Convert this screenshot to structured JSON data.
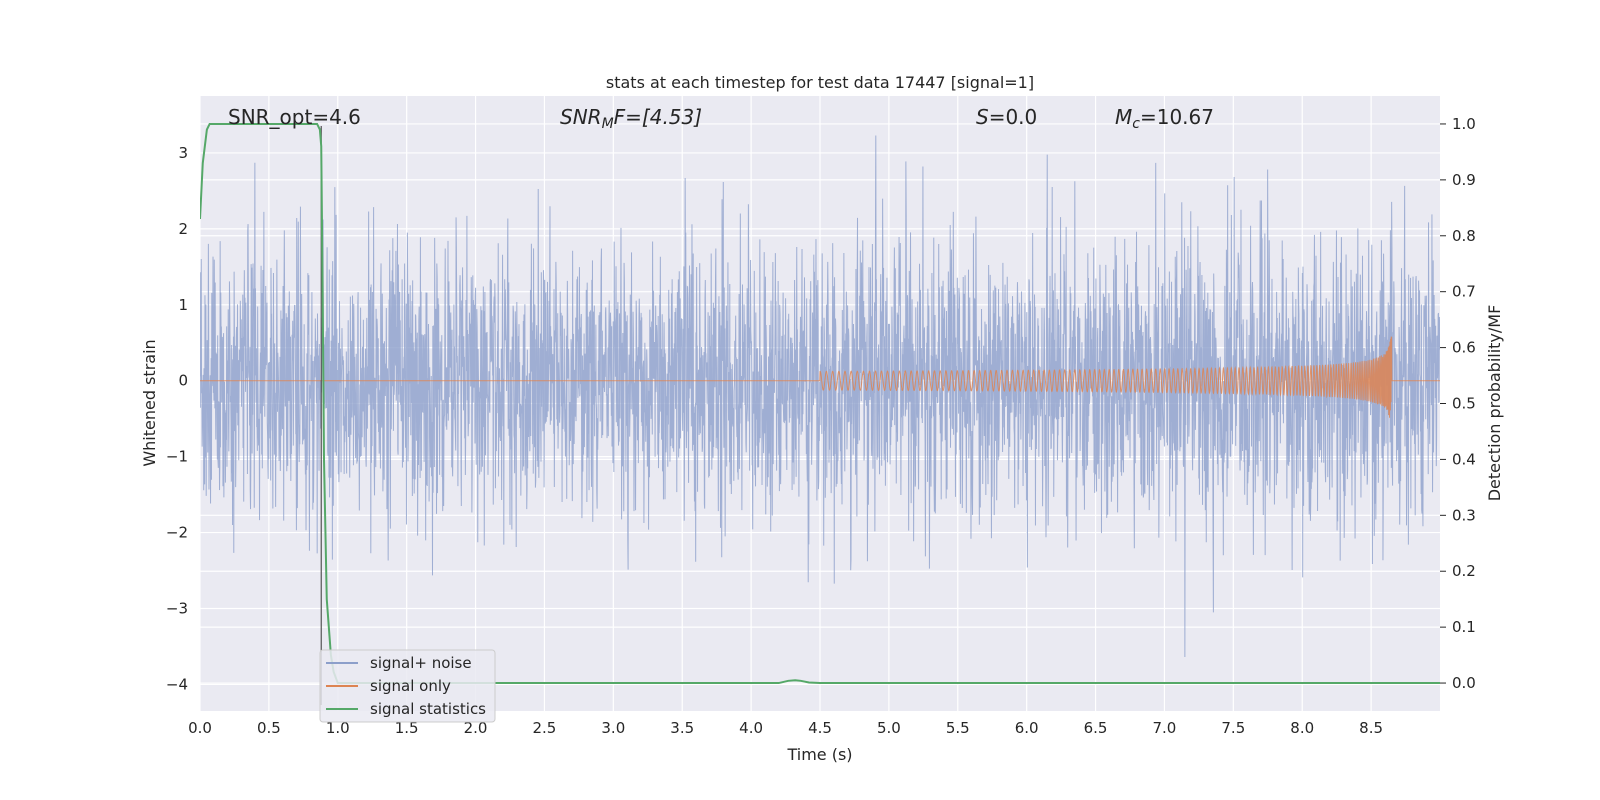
{
  "chart_data": {
    "type": "line",
    "title": "stats at each timestep for test data 17447 [signal=1]",
    "xlabel": "Time (s)",
    "ylabel_left": "Whitened strain",
    "ylabel_right": "Detection probability/MF",
    "xlim": [
      0.0,
      9.0
    ],
    "ylim_left": [
      -4.35,
      3.75
    ],
    "ylim_right": [
      -0.05,
      1.05
    ],
    "x_ticks": [
      0.0,
      0.5,
      1.0,
      1.5,
      2.0,
      2.5,
      3.0,
      3.5,
      4.0,
      4.5,
      5.0,
      5.5,
      6.0,
      6.5,
      7.0,
      7.5,
      8.0,
      8.5
    ],
    "x_tick_labels": [
      "0.0",
      "0.5",
      "1.0",
      "1.5",
      "2.0",
      "2.5",
      "3.0",
      "3.5",
      "4.0",
      "4.5",
      "5.0",
      "5.5",
      "6.0",
      "6.5",
      "7.0",
      "7.5",
      "8.0",
      "8.5"
    ],
    "y_left_ticks": [
      3,
      2,
      1,
      0,
      -1,
      -2,
      -3,
      -4
    ],
    "y_left_tick_labels": [
      "3",
      "2",
      "1",
      "0",
      "−1",
      "−2",
      "−3",
      "−4"
    ],
    "y_right_ticks": [
      1.0,
      0.9,
      0.8,
      0.7,
      0.6,
      0.5,
      0.4,
      0.3,
      0.2,
      0.1,
      0.0
    ],
    "y_right_tick_labels": [
      "1.0",
      "0.9",
      "0.8",
      "0.7",
      "0.6",
      "0.5",
      "0.4",
      "0.3",
      "0.2",
      "0.1",
      "0.0"
    ],
    "grid": true,
    "legend_position": "lower-left",
    "annotations": {
      "snr_opt": "SNR_opt=4.6",
      "snr_mf_name": "SNR",
      "snr_mf_sub": "M",
      "snr_mf_rest": "F=[4.53]",
      "s_name": "S",
      "s_rest": "=0.0",
      "mc_name": "M",
      "mc_sub": "c",
      "mc_rest": "=10.67"
    },
    "marker_time": 0.88,
    "series": [
      {
        "name": "signal+ noise",
        "axis": "left",
        "color": "#8c9fca",
        "description_values": {
          "noise_std": 0.9,
          "approx_min": -4.0,
          "approx_max": 3.4
        }
      },
      {
        "name": "signal only",
        "axis": "left",
        "color": "#dd8452",
        "chirp_start_time": 4.5,
        "merger_time": 8.65,
        "peak_amplitude": 0.7
      },
      {
        "name": "signal statistics",
        "axis": "right",
        "color": "#55a868",
        "x": [
          0.0,
          0.02,
          0.05,
          0.07,
          0.1,
          0.5,
          0.8,
          0.85,
          0.87,
          0.88,
          0.89,
          0.9,
          0.92,
          0.95,
          0.97,
          1.0,
          1.05,
          1.1,
          4.2,
          4.27,
          4.32,
          4.36,
          4.42,
          4.5,
          9.0
        ],
        "values": [
          0.83,
          0.93,
          0.99,
          1.0,
          1.0,
          1.0,
          1.0,
          1.0,
          0.99,
          0.96,
          0.7,
          0.4,
          0.15,
          0.05,
          0.02,
          0.0,
          0.0,
          0.0,
          0.0,
          0.004,
          0.005,
          0.004,
          0.001,
          0.0,
          0.0
        ]
      }
    ]
  }
}
